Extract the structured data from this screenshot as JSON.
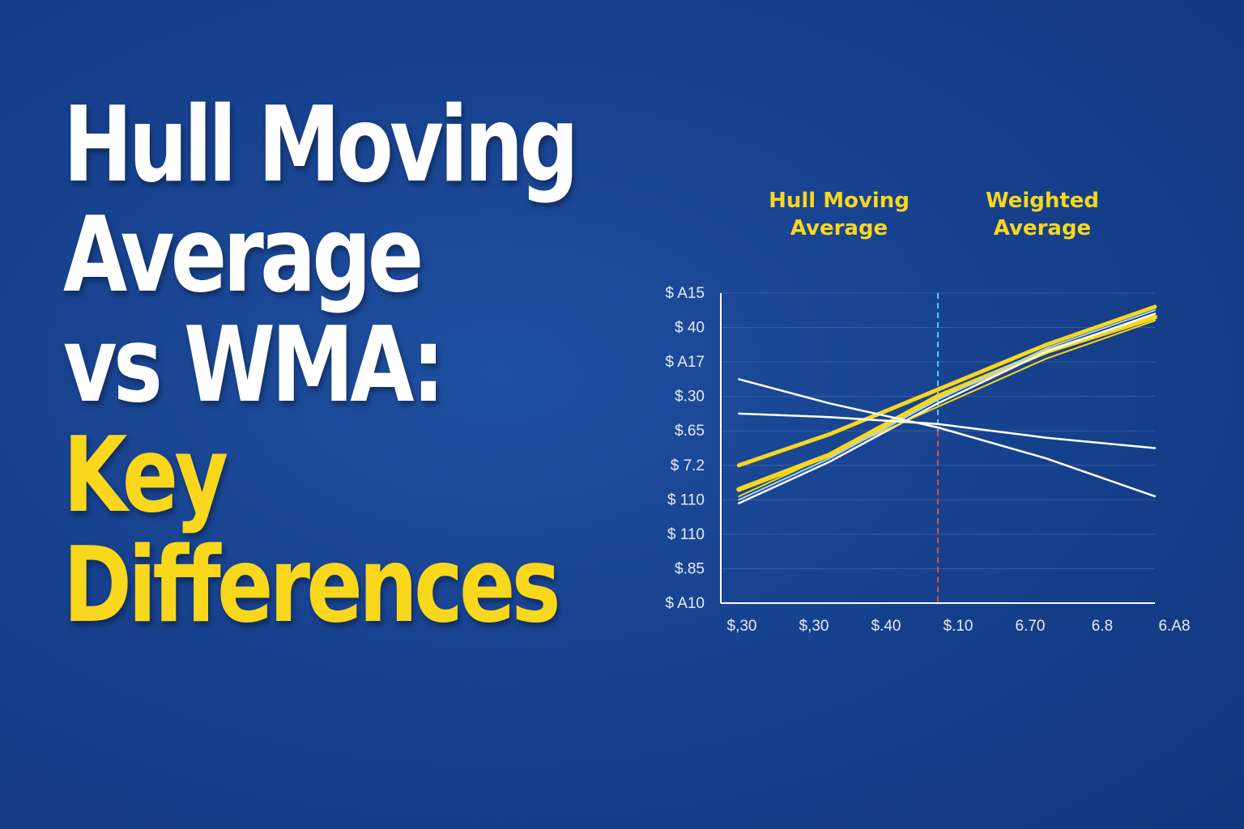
{
  "headline": {
    "lines": [
      {
        "text": "Hull Moving",
        "color": "#ffffff"
      },
      {
        "text": "Average",
        "color": "#ffffff"
      },
      {
        "text": "vs WMA:",
        "color": "#ffffff"
      },
      {
        "text": "Key",
        "color": "#f9d71c"
      },
      {
        "text": "Differences",
        "color": "#f9d71c"
      }
    ]
  },
  "colors": {
    "background": "#17428f",
    "accent_yellow": "#f9d71c",
    "white": "#ffffff",
    "axis_tick_text": "#e6ebf5",
    "marker_top": "#4fd1e6",
    "marker_bottom": "#e0503a"
  },
  "chart_data": {
    "type": "line",
    "legend": [
      {
        "label_lines": [
          "Hull Moving",
          "Average"
        ],
        "color": "#f9d71c"
      },
      {
        "label_lines": [
          "Weighted",
          "Average"
        ],
        "color": "#f9d71c"
      }
    ],
    "legend_placement": "top",
    "y_tick_labels": [
      "$ A15",
      "$ 40",
      "$ A17",
      "$.30",
      "$.65",
      "$ 7.2",
      "$ 110",
      "$ 110",
      "$.85",
      "$ A10"
    ],
    "x_tick_labels": [
      "$,30",
      "$,30",
      "$.40",
      "$.10",
      "6.70",
      "6.8",
      "6.A8"
    ],
    "x_range": [
      0,
      6
    ],
    "y_range": [
      0,
      9
    ],
    "grid": true,
    "vertical_marker_x": 3.0,
    "series": [
      {
        "x": [
          0.25,
          1.5,
          3.0,
          4.5,
          6.0
        ],
        "y": [
          4.0,
          4.9,
          6.2,
          7.5,
          8.6
        ],
        "color": "#f9d71c",
        "width": 5
      },
      {
        "x": [
          0.25,
          1.5,
          3.0,
          4.5,
          6.0
        ],
        "y": [
          3.3,
          4.3,
          6.0,
          7.3,
          8.3
        ],
        "color": "#f9d71c",
        "width": 6
      },
      {
        "x": [
          0.25,
          1.5,
          3.0,
          4.5,
          6.0
        ],
        "y": [
          2.9,
          4.1,
          5.8,
          7.3,
          8.4
        ],
        "color": "#ffffff",
        "width": 2.5
      },
      {
        "x": [
          0.25,
          1.5,
          3.0,
          4.5,
          6.0
        ],
        "y": [
          3.1,
          4.3,
          5.7,
          7.1,
          8.2
        ],
        "color": "#f9d71c",
        "width": 2
      },
      {
        "x": [
          0.25,
          1.5,
          3.0,
          4.5,
          6.0
        ],
        "y": [
          3.0,
          4.2,
          5.9,
          7.4,
          8.5
        ],
        "color": "#9fd8ff",
        "width": 2
      },
      {
        "x": [
          0.25,
          1.5,
          3.0,
          4.5,
          6.0
        ],
        "y": [
          6.5,
          5.8,
          5.1,
          4.2,
          3.1
        ],
        "color": "#ffffff",
        "width": 2.5
      },
      {
        "x": [
          0.25,
          1.5,
          3.0,
          4.5,
          6.0
        ],
        "y": [
          5.5,
          5.4,
          5.2,
          4.8,
          4.5
        ],
        "color": "#ffffff",
        "width": 2.5
      }
    ]
  }
}
